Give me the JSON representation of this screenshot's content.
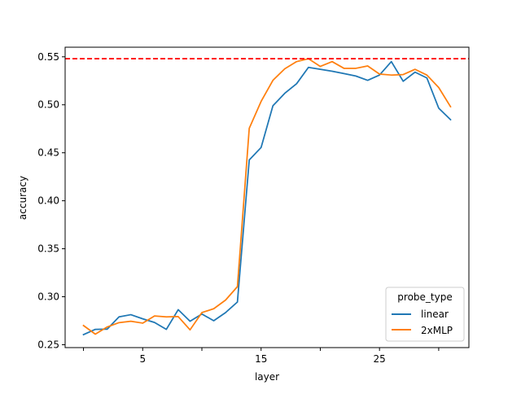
{
  "chart_data": {
    "type": "line",
    "title": "",
    "xlabel": "layer",
    "ylabel": "accuracy",
    "xlim": [
      -1.55,
      32.55
    ],
    "ylim": [
      0.247,
      0.56
    ],
    "xticks": [
      0,
      5,
      10,
      15,
      20,
      25,
      30
    ],
    "xtick_labels": [
      "",
      "5",
      "",
      "15",
      "",
      "25",
      ""
    ],
    "yticks": [
      0.25,
      0.3,
      0.35,
      0.4,
      0.45,
      0.5,
      0.55
    ],
    "ytick_labels": [
      "0.25",
      "0.30",
      "0.35",
      "0.40",
      "0.45",
      "0.50",
      "0.55"
    ],
    "grid": false,
    "legend": {
      "title": "probe_type",
      "position": "lower-right"
    },
    "x": [
      0,
      1,
      2,
      3,
      4,
      5,
      6,
      7,
      8,
      9,
      10,
      11,
      12,
      13,
      14,
      15,
      16,
      17,
      18,
      19,
      20,
      21,
      22,
      23,
      24,
      25,
      26,
      27,
      28,
      29,
      30,
      31
    ],
    "series": [
      {
        "name": "linear",
        "color": "#1f77b4",
        "values": [
          0.2605,
          0.266,
          0.2662,
          0.279,
          0.2813,
          0.277,
          0.2732,
          0.266,
          0.2865,
          0.2745,
          0.282,
          0.275,
          0.2835,
          0.2945,
          0.4425,
          0.4555,
          0.499,
          0.512,
          0.522,
          0.539,
          0.537,
          0.535,
          0.5325,
          0.53,
          0.5255,
          0.531,
          0.545,
          0.5245,
          0.534,
          0.528,
          0.4965,
          0.4845
        ]
      },
      {
        "name": "2xMLP",
        "color": "#ff7f0e",
        "values": [
          0.27,
          0.261,
          0.2685,
          0.273,
          0.2745,
          0.2725,
          0.28,
          0.279,
          0.2793,
          0.2655,
          0.2835,
          0.2875,
          0.2965,
          0.3105,
          0.4755,
          0.5035,
          0.5255,
          0.5375,
          0.545,
          0.548,
          0.54,
          0.545,
          0.538,
          0.538,
          0.5405,
          0.532,
          0.531,
          0.5315,
          0.537,
          0.531,
          0.518,
          0.498
        ]
      }
    ],
    "reference_line": {
      "y": 0.548,
      "color": "#ff0000",
      "style": "dashed"
    }
  }
}
